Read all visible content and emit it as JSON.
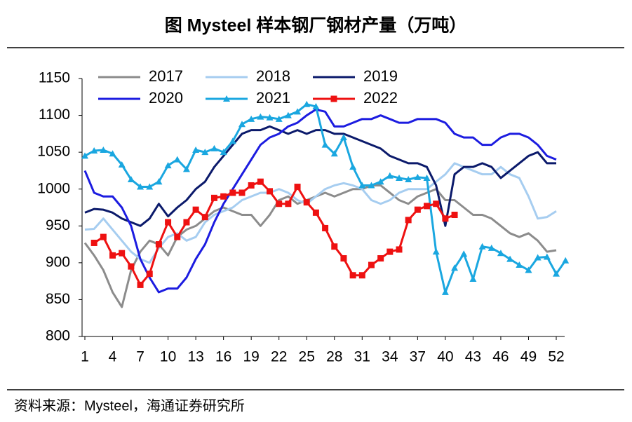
{
  "chart_data": {
    "type": "line",
    "title": "图  Mysteel 样本钢厂钢材产量（万吨）",
    "source": "资料来源：Mysteel，海通证券研究所",
    "x": [
      1,
      2,
      3,
      4,
      5,
      6,
      7,
      8,
      9,
      10,
      11,
      12,
      13,
      14,
      15,
      16,
      17,
      18,
      19,
      20,
      21,
      22,
      23,
      24,
      25,
      26,
      27,
      28,
      29,
      30,
      31,
      32,
      33,
      34,
      35,
      36,
      37,
      38,
      39,
      40,
      41,
      42,
      43,
      44,
      45,
      46,
      47,
      48,
      49,
      50,
      51,
      52,
      53
    ],
    "xlim": [
      1,
      52
    ],
    "xticks": [
      1,
      4,
      7,
      10,
      13,
      16,
      19,
      22,
      25,
      28,
      31,
      34,
      37,
      40,
      43,
      46,
      49,
      52
    ],
    "ylim": [
      800,
      1150
    ],
    "yticks": [
      800,
      850,
      900,
      950,
      1000,
      1050,
      1100,
      1150
    ],
    "series": [
      {
        "name": "2017",
        "color": "#8c8c8c",
        "marker": "none",
        "values": [
          927,
          910,
          890,
          860,
          840,
          890,
          915,
          930,
          925,
          910,
          935,
          945,
          950,
          960,
          970,
          975,
          970,
          965,
          965,
          950,
          965,
          985,
          990,
          980,
          985,
          990,
          995,
          990,
          995,
          1000,
          1000,
          1005,
          1005,
          995,
          985,
          980,
          990,
          995,
          1000,
          985,
          985,
          975,
          965,
          965,
          960,
          950,
          940,
          935,
          940,
          930,
          915,
          917,
          null
        ]
      },
      {
        "name": "2018",
        "color": "#a6cdf0",
        "marker": "none",
        "values": [
          945,
          946,
          960,
          945,
          930,
          915,
          905,
          900,
          920,
          935,
          940,
          930,
          935,
          955,
          965,
          970,
          975,
          985,
          990,
          995,
          995,
          1000,
          995,
          985,
          980,
          990,
          1000,
          1005,
          1008,
          1005,
          1000,
          985,
          980,
          985,
          995,
          1000,
          1000,
          1000,
          1010,
          1020,
          1035,
          1030,
          1025,
          1020,
          1020,
          1030,
          1020,
          1015,
          990,
          960,
          962,
          970,
          null
        ]
      },
      {
        "name": "2019",
        "color": "#0b1a6b",
        "marker": "none",
        "values": [
          968,
          973,
          972,
          968,
          960,
          955,
          950,
          960,
          980,
          963,
          975,
          985,
          1000,
          1010,
          1030,
          1045,
          1060,
          1075,
          1080,
          1080,
          1085,
          1080,
          1075,
          1080,
          1075,
          1080,
          1080,
          1075,
          1075,
          1070,
          1065,
          1060,
          1055,
          1045,
          1040,
          1035,
          1035,
          1030,
          1005,
          950,
          1020,
          1030,
          1030,
          1035,
          1030,
          1015,
          1025,
          1035,
          1045,
          1050,
          1035,
          1035,
          null
        ]
      },
      {
        "name": "2020",
        "color": "#1c1ce0",
        "marker": "none",
        "values": [
          1025,
          995,
          990,
          990,
          975,
          950,
          905,
          880,
          860,
          865,
          865,
          880,
          905,
          925,
          955,
          980,
          1000,
          1020,
          1040,
          1060,
          1070,
          1075,
          1085,
          1090,
          1100,
          1108,
          1105,
          1085,
          1085,
          1090,
          1095,
          1095,
          1100,
          1095,
          1090,
          1090,
          1095,
          1095,
          1095,
          1090,
          1075,
          1070,
          1070,
          1060,
          1060,
          1070,
          1075,
          1075,
          1070,
          1060,
          1045,
          1040,
          null
        ]
      },
      {
        "name": "2021",
        "color": "#1aa7e0",
        "marker": "triangle",
        "values": [
          1045,
          1052,
          1053,
          1048,
          1033,
          1013,
          1003,
          1003,
          1010,
          1032,
          1040,
          1027,
          1053,
          1050,
          1055,
          1050,
          1065,
          1088,
          1095,
          1098,
          1097,
          1095,
          1100,
          1105,
          1115,
          1112,
          1060,
          1048,
          1070,
          1030,
          1005,
          1005,
          1010,
          1018,
          1015,
          1013,
          1016,
          1015,
          915,
          860,
          893,
          912,
          878,
          922,
          920,
          913,
          905,
          897,
          890,
          907,
          908,
          885,
          903
        ]
      },
      {
        "name": "2022",
        "color": "#ee1111",
        "marker": "square",
        "values": [
          null,
          927,
          935,
          910,
          913,
          895,
          870,
          885,
          925,
          955,
          935,
          955,
          972,
          962,
          988,
          990,
          995,
          995,
          1005,
          1010,
          997,
          980,
          980,
          1003,
          982,
          968,
          947,
          922,
          906,
          883,
          883,
          897,
          906,
          915,
          918,
          958,
          972,
          977,
          980,
          960,
          965,
          null,
          null,
          null,
          null,
          null,
          null,
          null,
          null,
          null,
          null,
          null,
          null
        ]
      }
    ]
  }
}
